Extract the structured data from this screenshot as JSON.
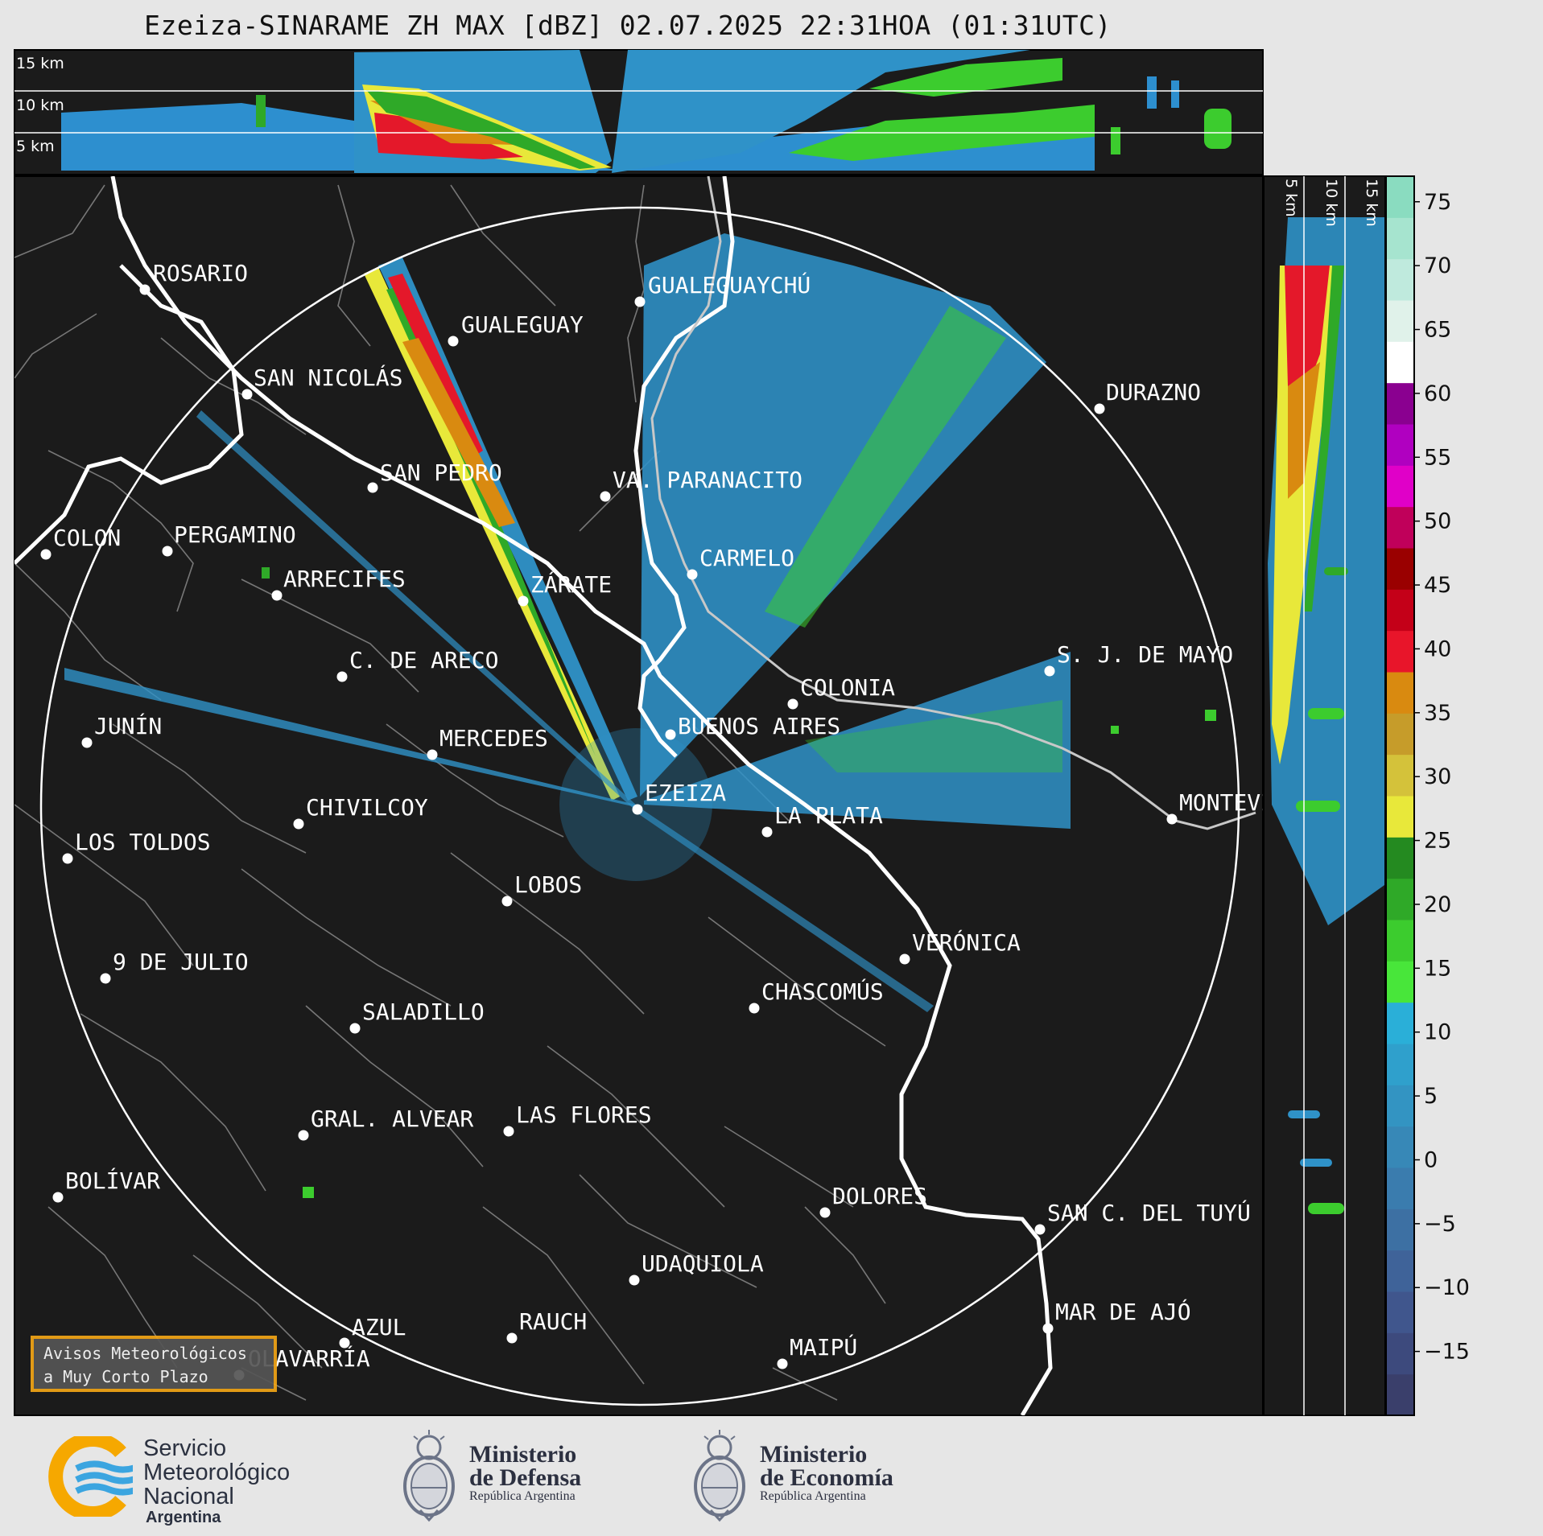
{
  "title": "Ezeiza-SINARAME ZH MAX [dBZ] 02.07.2025 22:31HOA (01:31UTC)",
  "top_panel_labels": [
    "15 km",
    "10 km",
    "5 km"
  ],
  "side_panel_labels": [
    "5 km",
    "10 km",
    "15 km"
  ],
  "colorbar": {
    "ticks": [
      "75",
      "70",
      "65",
      "60",
      "55",
      "50",
      "45",
      "40",
      "35",
      "30",
      "25",
      "20",
      "15",
      "10",
      "5",
      "0",
      "−5",
      "−10",
      "−15"
    ],
    "tick_values": [
      75,
      70,
      65,
      60,
      55,
      50,
      45,
      40,
      35,
      30,
      25,
      20,
      15,
      10,
      5,
      0,
      -5,
      -10,
      -15
    ],
    "min": -20,
    "max": 77,
    "colors": [
      "#3a3f6b",
      "#3d4a7d",
      "#40568d",
      "#3f6399",
      "#3d70a3",
      "#3a7cae",
      "#3788b7",
      "#3394c2",
      "#2fa0cc",
      "#2aafd8",
      "#48e63a",
      "#3ccc2e",
      "#2fa928",
      "#248a20",
      "#e8e83a",
      "#d4c23a",
      "#c69c2a",
      "#d98a10",
      "#e8152a",
      "#c40018",
      "#9a0000",
      "#c0005a",
      "#e000c8",
      "#b000c0",
      "#8a0090",
      "#ffffff",
      "#e0f2ea",
      "#bfeadd",
      "#a6e4cf",
      "#8adcc0"
    ]
  },
  "cities": [
    {
      "name": "ROSARIO"
    },
    {
      "name": "GUALEGUAYCHÚ"
    },
    {
      "name": "GUALEGUAY"
    },
    {
      "name": "SAN NICOLÁS"
    },
    {
      "name": "DURAZNO"
    },
    {
      "name": "SAN PEDRO"
    },
    {
      "name": "VA. PARANACITO"
    },
    {
      "name": "COLON"
    },
    {
      "name": "PERGAMINO"
    },
    {
      "name": "CARMELO"
    },
    {
      "name": "ARRECIFES"
    },
    {
      "name": "ZÁRATE"
    },
    {
      "name": "S. J. DE MAYO"
    },
    {
      "name": "C. DE ARECO"
    },
    {
      "name": "COLONIA"
    },
    {
      "name": "JUNÍN"
    },
    {
      "name": "BUENOS AIRES"
    },
    {
      "name": "MERCEDES"
    },
    {
      "name": "EZEIZA"
    },
    {
      "name": "MONTEVIDEO"
    },
    {
      "name": "CHIVILCOY"
    },
    {
      "name": "LA PLATA"
    },
    {
      "name": "LOS TOLDOS"
    },
    {
      "name": "LOBOS"
    },
    {
      "name": "VERÓNICA"
    },
    {
      "name": "9 DE JULIO"
    },
    {
      "name": "CHASCOMÚS"
    },
    {
      "name": "SALADILLO"
    },
    {
      "name": "GRAL. ALVEAR"
    },
    {
      "name": "LAS FLORES"
    },
    {
      "name": "BOLÍVAR"
    },
    {
      "name": "DOLORES"
    },
    {
      "name": "SAN C. DEL TUYÚ"
    },
    {
      "name": "UDAQUIOLA"
    },
    {
      "name": "RAUCH"
    },
    {
      "name": "AZUL"
    },
    {
      "name": "MAR DE AJÓ"
    },
    {
      "name": "OLAVARRÍA"
    },
    {
      "name": "MAIPÚ"
    }
  ],
  "avisos_box": {
    "line1": "Avisos Meteorológicos",
    "line2": "a Muy Corto Plazo"
  },
  "logos": {
    "smn": {
      "line1": "Servicio",
      "line2": "Meteorológico",
      "line3": "Nacional",
      "sub": "Argentina"
    },
    "defensa": {
      "line1": "Ministerio",
      "line2": "de Defensa",
      "sub": "República Argentina"
    },
    "economia": {
      "line1": "Ministerio",
      "line2": "de Economía",
      "sub": "República Argentina"
    }
  },
  "colors": {
    "map_background": "#1b1b1b",
    "page_background": "#e6e6e6",
    "avisos_border": "#f2a516",
    "smn_orange": "#f6a800",
    "smn_blue": "#3ba5e0"
  }
}
